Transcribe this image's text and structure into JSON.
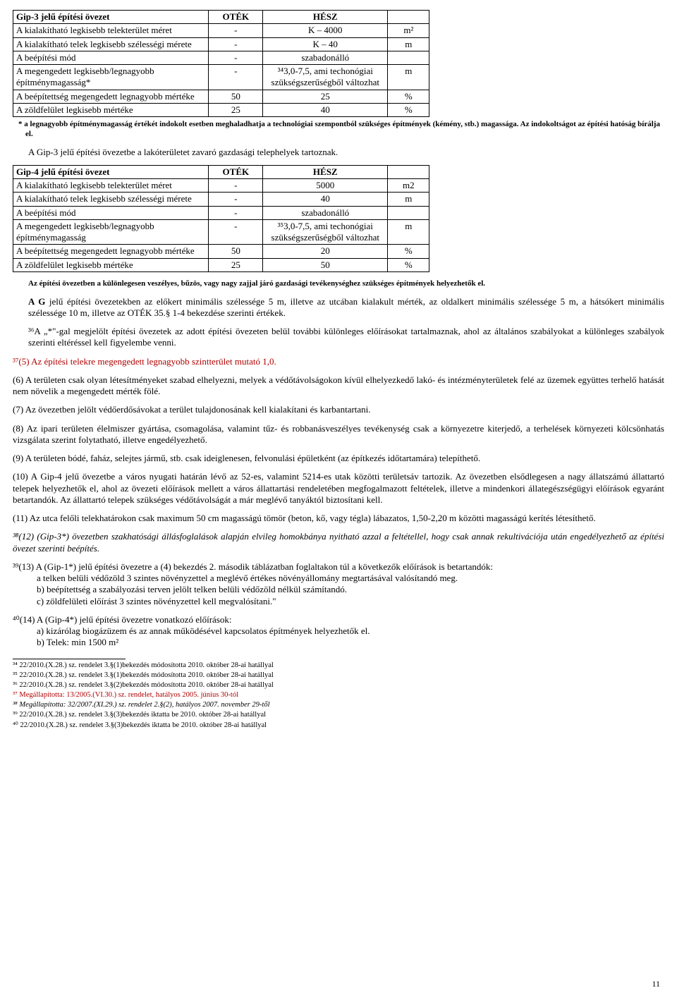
{
  "table1": {
    "header": [
      "Gip-3 jelű építési övezet",
      "OTÉK",
      "HÉSZ",
      ""
    ],
    "rows": [
      [
        "A kialakítható legkisebb telekterület méret",
        "-",
        "K – 4000",
        "m²"
      ],
      [
        "A kialakítható telek legkisebb szélességi mérete",
        "-",
        "K – 40",
        "m"
      ],
      [
        "A beépítési mód",
        "-",
        "szabadonálló",
        ""
      ],
      [
        "A megengedett legkisebb/legnagyobb építménymagasság*",
        "-",
        "³⁴3,0-7,5, ami techonógiai szükségszerűségből változhat",
        "m"
      ],
      [
        "A beépítettség megengedett legnagyobb mértéke",
        "50",
        "25",
        "%"
      ],
      [
        "A zöldfelület legkisebb mértéke",
        "25",
        "40",
        "%"
      ]
    ]
  },
  "note1": "*  a legnagyobb építménymagasság értékét indokolt esetben meghaladhatja a technológiai szempontból szükséges építmények (kémény, stb.) magassága. Az indokoltságot az építési hatóság bírálja el.",
  "betweenTables": "A Gip-3 jelű építési övezetbe a lakóterületet zavaró gazdasági telephelyek tartoznak.",
  "table2": {
    "header": [
      "Gip-4 jelű építési övezet",
      "OTÉK",
      "HÉSZ",
      ""
    ],
    "rows": [
      [
        "A kialakítható legkisebb telekterület méret",
        "-",
        "5000",
        "m2"
      ],
      [
        "A kialakítható telek legkisebb szélességi mérete",
        "-",
        "40",
        "m"
      ],
      [
        "A beépítési mód",
        "-",
        "szabadonálló",
        ""
      ],
      [
        "A megengedett legkisebb/legnagyobb építménymagasság",
        "-",
        "³⁵3,0-7,5, ami techonógiai szükségszerűségből változhat",
        "m"
      ],
      [
        "A beépítettség megengedett legnagyobb mértéke",
        "50",
        "20",
        "%"
      ],
      [
        "A zöldfelület legkisebb mértéke",
        "25",
        "50",
        "%"
      ]
    ]
  },
  "afterTable2": "Az építési övezetben a különlegesen veszélyes, bűzös, vagy nagy zajjal járó gazdasági tevékenységhez szükséges építmények helyezhetők el.",
  "paraG": "A G jelű építési övezetekben az előkert minimális szélessége 5 m, illetve az utcában kialakult mérték, az oldalkert minimális szélessége 5 m, a hátsókert minimális szélessége 10 m, illetve az OTÉK 35.§ 1-4 bekezdése szerinti értékek.",
  "para36": "³⁶A „*\"-gal megjelölt építési övezetek az adott építési övezeten belül további különleges előírásokat tartalmaznak, ahol az általános szabályokat a különleges szabályok szerinti eltéréssel kell figyelembe venni.",
  "p5": "³⁷(5) Az építési telekre megengedett legnagyobb szintterület mutató 1,0.",
  "p6": "(6) A területen csak olyan létesítményeket szabad elhelyezni, melyek a védőtávolságokon kívül elhelyezkedő lakó- és intézményterületek felé az üzemek együttes terhelő hatását nem növelik a megengedett mérték fölé.",
  "p7": "(7) Az övezetben jelölt védőerdősávokat a terület tulajdonosának kell kialakítani és karbantartani.",
  "p8": "(8) Az ipari területen élelmiszer gyártása, csomagolása, valamint tűz- és robbanásveszélyes tevékenység csak a környezetre kiterjedő, a terhelések környezeti kölcsönhatás vizsgálata szerint folytatható, illetve engedélyezhető.",
  "p9": "(9) A területen bódé, faház, selejtes jármű, stb. csak ideiglenesen, felvonulási épületként (az építkezés időtartamára) telepíthető.",
  "p10": "(10) A Gip-4 jelű övezetbe a város nyugati határán lévő az 52-es, valamint 5214-es utak közötti területsáv tartozik. Az övezetben elsődlegesen a nagy állatszámú állattartó telepek helyezhetők el, ahol az övezeti előírások mellett a város állattartási rendeletében megfogalmazott feltételek, illetve a mindenkori állategészségügyi előírások egyaránt betartandók. Az állattartó telepek szükséges védőtávolságát a már meglévő tanyáktól biztosítani kell.",
  "p11": "(11) Az utca felőli telekhatárokon csak maximum 50 cm magasságú tömör (beton, kő, vagy tégla) lábazatos, 1,50-2,20 m közötti magasságú kerítés létesíthető.",
  "p12": "³⁸(12) (Gip-3*) övezetben szakhatósági állásfoglalások alapján elvileg homokbánya nyitható azzal a feltétellel, hogy csak annak rekultivációja után engedélyezhető az építési övezet szerinti beépítés.",
  "p13": {
    "lead": "³⁹(13) A (Gip-1*) jelű építési övezetre a (4) bekezdés 2. második táblázatban foglaltakon túl a következők előírások is betartandók:",
    "a": "a telken belüli védőzöld 3 szintes növényzettel a meglévő értékes növényállomány megtartásával valósítandó meg.",
    "b": "b) beépítettség a szabályozási terven jelölt telken belüli védőzöld nélkül számítandó.",
    "c": "c) zöldfelületi előírást 3 szintes növényzettel kell megvalósítani.\""
  },
  "p14": {
    "lead": "⁴⁰(14) A (Gip-4*) jelű építési övezetre vonatkozó előírások:",
    "a": "a) kizárólag biogázüzem és az annak működésével kapcsolatos építmények helyezhetők el.",
    "b": "b) Telek: min 1500 m²"
  },
  "footnotes": [
    "³⁴ 22/2010.(X.28.) sz. rendelet 3.§(1)bekezdés módosította 2010. október 28-ai hatállyal",
    "³⁵ 22/2010.(X.28.) sz. rendelet 3.§(1)bekezdés módosította 2010. október 28-ai hatállyal",
    "³⁶ 22/2010.(X.28.) sz. rendelet 3.§(2)bekezdés módosította 2010. október 28-ai hatállyal",
    {
      "red": true,
      "text": "³⁷ Megállapította: 13/2005.(VI.30.) sz. rendelet, hatályos 2005. június 30-tól"
    },
    {
      "italic": true,
      "text": "³⁸ Megállapította: 32/2007.(XI.29.) sz. rendelet 2.§(2), hatályos 2007. november 29-től"
    },
    "³⁹ 22/2010.(X.28.) sz. rendelet 3.§(3)bekezdés iktatta be 2010. október 28-ai hatállyal",
    "⁴⁰ 22/2010.(X.28.) sz. rendelet 3.§(3)bekezdés iktatta be 2010. október 28-ai hatállyal"
  ],
  "pageNumber": "11"
}
